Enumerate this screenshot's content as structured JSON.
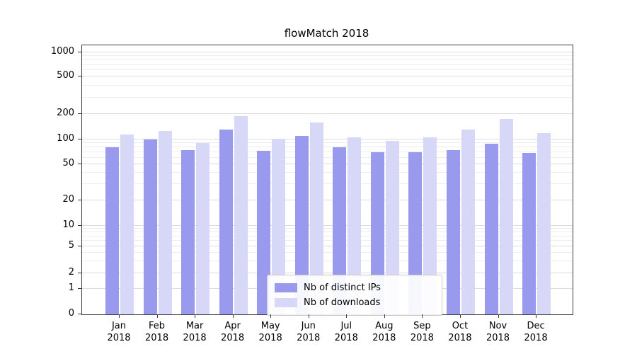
{
  "chart_data": {
    "type": "bar",
    "title": "flowMatch 2018",
    "categories": [
      "Jan",
      "Feb",
      "Mar",
      "Apr",
      "May",
      "Jun",
      "Jul",
      "Aug",
      "Sep",
      "Oct",
      "Nov",
      "Dec"
    ],
    "year_label": "2018",
    "series": [
      {
        "name": "Nb of distinct IPs",
        "color": "#9999ee",
        "values": [
          80,
          100,
          75,
          130,
          73,
          110,
          80,
          70,
          70,
          75,
          88,
          68
        ]
      },
      {
        "name": "Nb of downloads",
        "color": "#d7d7f8",
        "values": [
          115,
          125,
          90,
          190,
          100,
          160,
          105,
          97,
          107,
          130,
          175,
          120
        ]
      }
    ],
    "yscale": "symlog",
    "yticks": [
      0,
      1,
      2,
      5,
      10,
      20,
      50,
      100,
      200,
      500,
      1000
    ],
    "ylim": [
      0,
      1400
    ],
    "grid": true,
    "legend_position": "bottom-center",
    "background_color": "#ffffff"
  }
}
